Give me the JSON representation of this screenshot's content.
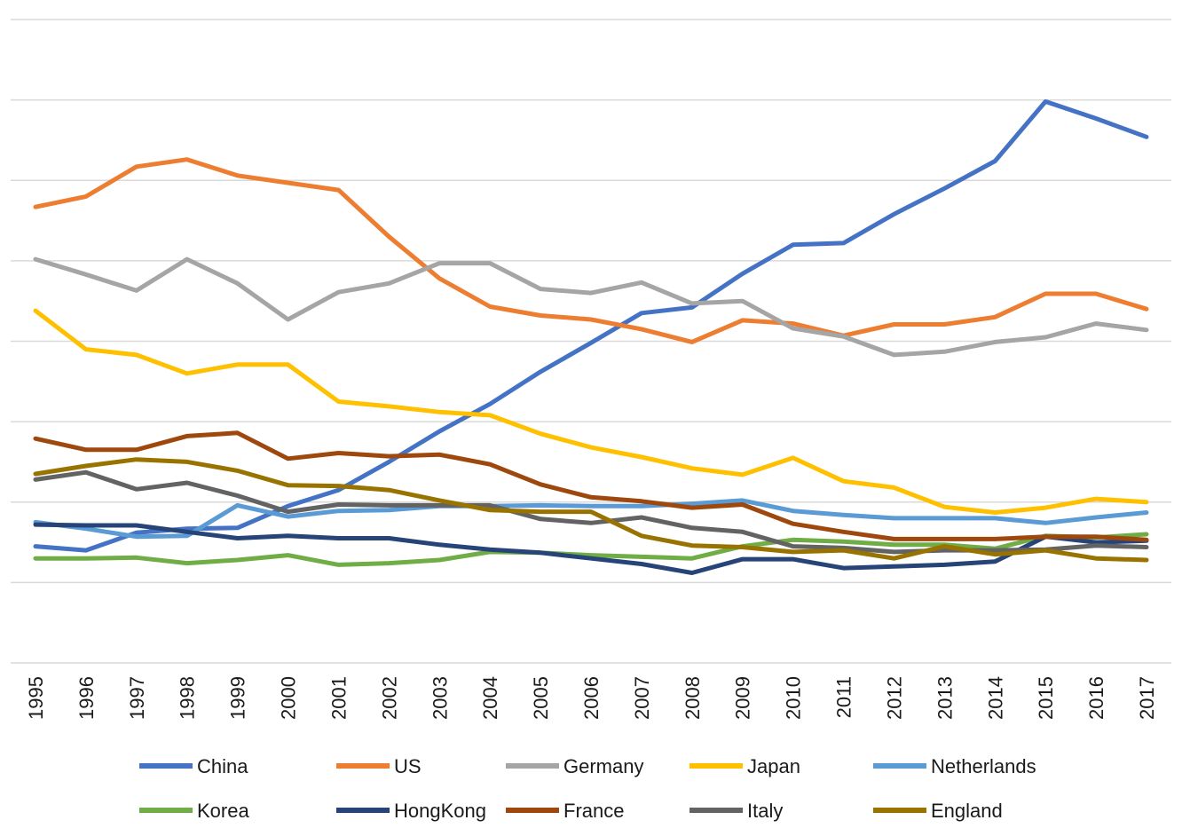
{
  "chart_data": {
    "type": "line",
    "title": "",
    "xlabel": "",
    "ylabel": "",
    "ylim": [
      0,
      8
    ],
    "grid": true,
    "legend_position": "bottom",
    "x": [
      "1995",
      "1996",
      "1997",
      "1998",
      "1999",
      "2000",
      "2001",
      "2002",
      "2003",
      "2004",
      "2005",
      "2006",
      "2007",
      "2008",
      "2009",
      "2010",
      "2011",
      "2012",
      "2013",
      "2014",
      "2015",
      "2016",
      "2017"
    ],
    "series": [
      {
        "name": "China",
        "color": "#4472C4",
        "values": [
          1.45,
          1.4,
          1.62,
          1.67,
          1.68,
          1.95,
          2.15,
          2.5,
          2.88,
          3.22,
          3.62,
          3.98,
          4.35,
          4.42,
          4.84,
          5.2,
          5.22,
          5.58,
          5.9,
          6.24,
          6.98,
          6.77,
          6.54
        ]
      },
      {
        "name": "US",
        "color": "#ED7D31",
        "values": [
          5.67,
          5.8,
          6.17,
          6.26,
          6.06,
          5.97,
          5.88,
          5.3,
          4.78,
          4.43,
          4.32,
          4.27,
          4.15,
          3.99,
          4.26,
          4.22,
          4.07,
          4.21,
          4.21,
          4.3,
          4.59,
          4.59,
          4.4
        ]
      },
      {
        "name": "Germany",
        "color": "#A5A5A5",
        "values": [
          5.02,
          4.83,
          4.63,
          5.02,
          4.72,
          4.27,
          4.61,
          4.72,
          4.97,
          4.97,
          4.65,
          4.6,
          4.73,
          4.47,
          4.5,
          4.16,
          4.06,
          3.83,
          3.87,
          3.99,
          4.05,
          4.22,
          4.14
        ]
      },
      {
        "name": "Japan",
        "color": "#FFC000",
        "values": [
          4.38,
          3.9,
          3.83,
          3.6,
          3.71,
          3.71,
          3.25,
          3.19,
          3.12,
          3.08,
          2.85,
          2.68,
          2.56,
          2.42,
          2.34,
          2.55,
          2.26,
          2.18,
          1.94,
          1.87,
          1.93,
          2.04,
          2.0
        ]
      },
      {
        "name": "Netherlands",
        "color": "#5B9BD5",
        "values": [
          1.75,
          1.67,
          1.57,
          1.58,
          1.96,
          1.82,
          1.89,
          1.9,
          1.95,
          1.95,
          1.96,
          1.95,
          1.95,
          1.98,
          2.02,
          1.89,
          1.84,
          1.8,
          1.8,
          1.8,
          1.74,
          1.81,
          1.87
        ]
      },
      {
        "name": "Korea",
        "color": "#70AD47",
        "values": [
          1.3,
          1.3,
          1.31,
          1.24,
          1.28,
          1.34,
          1.22,
          1.24,
          1.28,
          1.38,
          1.37,
          1.34,
          1.32,
          1.3,
          1.45,
          1.53,
          1.51,
          1.47,
          1.47,
          1.42,
          1.58,
          1.56,
          1.6
        ]
      },
      {
        "name": "HongKong",
        "color": "#264478",
        "values": [
          1.72,
          1.71,
          1.71,
          1.63,
          1.55,
          1.58,
          1.55,
          1.55,
          1.47,
          1.41,
          1.37,
          1.3,
          1.23,
          1.12,
          1.29,
          1.29,
          1.18,
          1.2,
          1.22,
          1.26,
          1.57,
          1.5,
          1.52
        ]
      },
      {
        "name": "France",
        "color": "#9E480E",
        "values": [
          2.79,
          2.65,
          2.65,
          2.82,
          2.86,
          2.54,
          2.61,
          2.57,
          2.59,
          2.47,
          2.22,
          2.06,
          2.01,
          1.93,
          1.97,
          1.73,
          1.63,
          1.54,
          1.54,
          1.54,
          1.57,
          1.57,
          1.53
        ]
      },
      {
        "name": "Italy",
        "color": "#636363",
        "values": [
          2.28,
          2.37,
          2.16,
          2.24,
          2.08,
          1.88,
          1.97,
          1.96,
          1.96,
          1.96,
          1.79,
          1.74,
          1.81,
          1.68,
          1.63,
          1.45,
          1.43,
          1.38,
          1.4,
          1.4,
          1.41,
          1.46,
          1.44
        ]
      },
      {
        "name": "England",
        "color": "#997300",
        "values": [
          2.35,
          2.45,
          2.53,
          2.5,
          2.39,
          2.21,
          2.2,
          2.15,
          2.02,
          1.9,
          1.88,
          1.88,
          1.58,
          1.46,
          1.44,
          1.38,
          1.4,
          1.3,
          1.45,
          1.35,
          1.4,
          1.3,
          1.28
        ]
      }
    ]
  }
}
